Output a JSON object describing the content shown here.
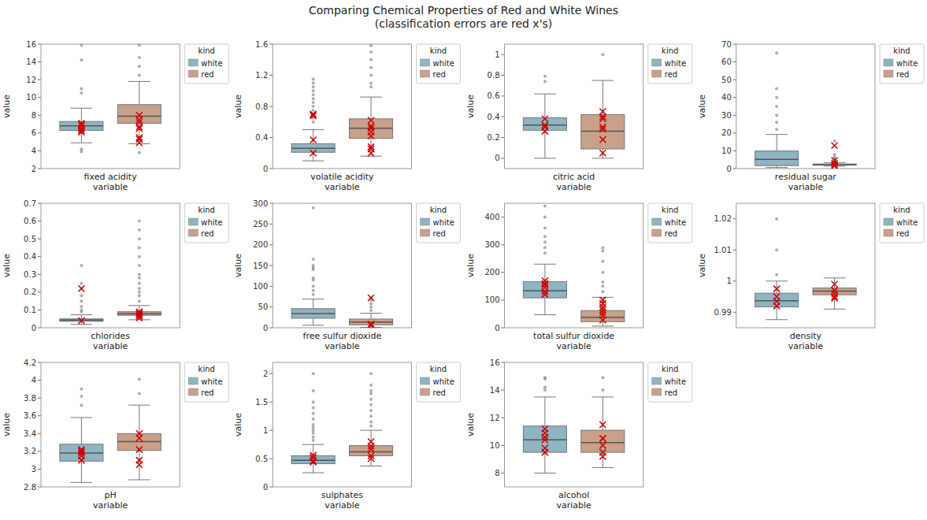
{
  "title": "Comparing Chemical Properties of Red and White Wines\n(classification errors are red x's)",
  "chart_data": [
    {
      "type": "box",
      "x_label": "fixed acidity\nvariable",
      "y_label": "value",
      "ylim": [
        2,
        16
      ],
      "yticks": [
        2,
        4,
        6,
        8,
        10,
        12,
        14,
        16
      ],
      "grid": false,
      "legend": "upper right",
      "legend_title": "kind",
      "error_color": "#CC0000",
      "series": [
        {
          "name": "white",
          "color": "#8FB4C2",
          "q1": 6.3,
          "med": 6.8,
          "q3": 7.3,
          "whislo": 4.9,
          "whishi": 8.8,
          "fliers": [
            3.9,
            4.2,
            10.5,
            11.0,
            14.2,
            15.9
          ],
          "errors": [
            6.1,
            6.5,
            7.0,
            7.1,
            6.8,
            6.3
          ]
        },
        {
          "name": "red",
          "color": "#C9A08A",
          "q1": 7.1,
          "med": 7.9,
          "q3": 9.2,
          "whislo": 4.8,
          "whishi": 11.8,
          "fliers": [
            3.8,
            12.5,
            13.5,
            14.5,
            15.9
          ],
          "errors": [
            8.0,
            7.5,
            7.2,
            6.5,
            6.7,
            5.3,
            5.5,
            4.9
          ]
        }
      ]
    },
    {
      "type": "box",
      "x_label": "volatile acidity\nvariable",
      "y_label": "value",
      "ylim": [
        0,
        1.6
      ],
      "yticks": [
        0,
        0.4,
        0.8,
        1.2,
        1.6
      ],
      "grid": false,
      "legend": "upper right",
      "legend_title": "kind",
      "error_color": "#CC0000",
      "series": [
        {
          "name": "white",
          "color": "#8FB4C2",
          "q1": 0.21,
          "med": 0.26,
          "q3": 0.32,
          "whislo": 0.1,
          "whishi": 0.5,
          "fliers": [
            0.6,
            0.65,
            0.7,
            0.75,
            0.8,
            0.85,
            0.9,
            0.95,
            1.0,
            1.05,
            1.1,
            1.15
          ],
          "errors": [
            0.2,
            0.37,
            0.7,
            0.68
          ]
        },
        {
          "name": "red",
          "color": "#C9A08A",
          "q1": 0.39,
          "med": 0.52,
          "q3": 0.64,
          "whislo": 0.16,
          "whishi": 0.92,
          "fliers": [
            1.05,
            1.1,
            1.2,
            1.3,
            1.4,
            1.5,
            1.58
          ],
          "errors": [
            0.55,
            0.62,
            0.42,
            0.52,
            0.47,
            0.28,
            0.2,
            0.25
          ]
        }
      ]
    },
    {
      "type": "box",
      "x_label": "citric acid\nvariable",
      "y_label": "value",
      "ylim": [
        -0.1,
        1.1
      ],
      "yticks": [
        0,
        0.2,
        0.4,
        0.6,
        0.8,
        1
      ],
      "grid": false,
      "legend": "upper right",
      "legend_title": "kind",
      "error_color": "#CC0000",
      "series": [
        {
          "name": "white",
          "color": "#8FB4C2",
          "q1": 0.27,
          "med": 0.32,
          "q3": 0.39,
          "whislo": 0.0,
          "whishi": 0.62,
          "fliers": [
            0.74,
            0.79
          ],
          "errors": [
            0.26,
            0.32,
            0.38,
            0.3
          ]
        },
        {
          "name": "red",
          "color": "#C9A08A",
          "q1": 0.09,
          "med": 0.26,
          "q3": 0.42,
          "whislo": 0.0,
          "whishi": 0.75,
          "fliers": [
            1.0
          ],
          "errors": [
            0.38,
            0.18,
            0.45,
            0.28,
            0.05,
            0.4,
            0.3
          ]
        }
      ]
    },
    {
      "type": "box",
      "x_label": "residual sugar\nvariable",
      "y_label": "value",
      "ylim": [
        0,
        70
      ],
      "yticks": [
        0,
        10,
        20,
        30,
        40,
        50,
        60,
        70
      ],
      "grid": false,
      "legend": "upper right",
      "legend_title": "kind",
      "error_color": "#CC0000",
      "series": [
        {
          "name": "white",
          "color": "#8FB4C2",
          "q1": 1.7,
          "med": 5.2,
          "q3": 9.9,
          "whislo": 0.6,
          "whishi": 19.2,
          "fliers": [
            22,
            26,
            30,
            35,
            40,
            45,
            65
          ],
          "errors": []
        },
        {
          "name": "red",
          "color": "#C9A08A",
          "q1": 1.9,
          "med": 2.2,
          "q3": 2.6,
          "whislo": 1.4,
          "whishi": 3.4,
          "fliers": [
            4.0,
            4.5,
            5.0,
            5.5,
            6.5,
            8.0,
            15.5
          ],
          "errors": [
            2.0,
            1.5,
            3.0,
            4.5,
            13.0
          ]
        }
      ]
    },
    {
      "type": "box",
      "x_label": "chlorides\nvariable",
      "y_label": "value",
      "ylim": [
        0,
        0.7
      ],
      "yticks": [
        0,
        0.1,
        0.2,
        0.3,
        0.4,
        0.5,
        0.6,
        0.7
      ],
      "grid": false,
      "legend": "upper right",
      "legend_title": "kind",
      "error_color": "#CC0000",
      "series": [
        {
          "name": "white",
          "color": "#8FB4C2",
          "q1": 0.036,
          "med": 0.043,
          "q3": 0.05,
          "whislo": 0.019,
          "whishi": 0.073,
          "fliers": [
            0.09,
            0.1,
            0.12,
            0.15,
            0.18,
            0.22,
            0.25,
            0.35
          ],
          "errors": [
            0.04,
            0.22
          ]
        },
        {
          "name": "red",
          "color": "#C9A08A",
          "q1": 0.07,
          "med": 0.079,
          "q3": 0.09,
          "whislo": 0.045,
          "whishi": 0.125,
          "fliers": [
            0.15,
            0.18,
            0.2,
            0.22,
            0.25,
            0.28,
            0.3,
            0.35,
            0.4,
            0.45,
            0.5,
            0.55,
            0.6
          ],
          "errors": [
            0.074,
            0.082,
            0.068,
            0.09,
            0.056
          ]
        }
      ]
    },
    {
      "type": "box",
      "x_label": "free sulfur dioxide\nvariable",
      "y_label": "value",
      "ylim": [
        0,
        300
      ],
      "yticks": [
        0,
        50,
        100,
        150,
        200,
        250,
        300
      ],
      "grid": false,
      "legend": "upper right",
      "legend_title": "kind",
      "error_color": "#CC0000",
      "series": [
        {
          "name": "white",
          "color": "#8FB4C2",
          "q1": 23,
          "med": 34,
          "q3": 46,
          "whislo": 6,
          "whishi": 69,
          "fliers": [
            80,
            90,
            100,
            115,
            120,
            140,
            145,
            150,
            165,
            289
          ],
          "errors": []
        },
        {
          "name": "red",
          "color": "#C9A08A",
          "q1": 7,
          "med": 14,
          "q3": 21,
          "whislo": 1,
          "whishi": 35,
          "fliers": [
            42,
            50,
            58,
            66,
            72
          ],
          "errors": [
            6.0,
            9.0,
            72.0
          ]
        }
      ]
    },
    {
      "type": "box",
      "x_label": "total sulfur dioxide\nvariable",
      "y_label": "value",
      "ylim": [
        0,
        450
      ],
      "yticks": [
        0,
        100,
        200,
        300,
        400
      ],
      "grid": false,
      "legend": "upper right",
      "legend_title": "kind",
      "error_color": "#CC0000",
      "series": [
        {
          "name": "white",
          "color": "#8FB4C2",
          "q1": 108,
          "med": 134,
          "q3": 167,
          "whislo": 47,
          "whishi": 230,
          "fliers": [
            270,
            290,
            310,
            330,
            360,
            400,
            440
          ],
          "errors": [
            120,
            145,
            160,
            170,
            155,
            130
          ]
        },
        {
          "name": "red",
          "color": "#C9A08A",
          "q1": 22,
          "med": 38,
          "q3": 62,
          "whislo": 6,
          "whishi": 110,
          "fliers": [
            130,
            150,
            165,
            200,
            240,
            278,
            289
          ],
          "errors": [
            28,
            45,
            55,
            65,
            75,
            88,
            100
          ]
        }
      ]
    },
    {
      "type": "box",
      "x_label": "density\nvariable",
      "y_label": "value",
      "ylim": [
        0.985,
        1.025
      ],
      "yticks": [
        0.99,
        1,
        1.01,
        1.02
      ],
      "grid": false,
      "legend": "upper right",
      "legend_title": "kind",
      "error_color": "#CC0000",
      "series": [
        {
          "name": "white",
          "color": "#8FB4C2",
          "q1": 0.9917,
          "med": 0.9937,
          "q3": 0.9961,
          "whislo": 0.9876,
          "whishi": 1.0,
          "fliers": [
            1.002,
            1.01,
            1.02
          ],
          "errors": [
            0.9935,
            0.992,
            0.995,
            0.9975
          ]
        },
        {
          "name": "red",
          "color": "#C9A08A",
          "q1": 0.9956,
          "med": 0.9968,
          "q3": 0.9978,
          "whislo": 0.991,
          "whishi": 1.001,
          "fliers": [],
          "errors": [
            0.997,
            0.999,
            0.995,
            0.9945,
            0.996
          ]
        }
      ]
    },
    {
      "type": "box",
      "x_label": "pH\nvariable",
      "y_label": "value",
      "ylim": [
        2.8,
        4.2
      ],
      "yticks": [
        2.8,
        3,
        3.2,
        3.4,
        3.6,
        3.8,
        4,
        4.2
      ],
      "grid": false,
      "legend": "upper right",
      "legend_title": "kind",
      "error_color": "#CC0000",
      "series": [
        {
          "name": "white",
          "color": "#8FB4C2",
          "q1": 3.09,
          "med": 3.18,
          "q3": 3.28,
          "whislo": 2.85,
          "whishi": 3.58,
          "fliers": [
            3.72,
            3.82,
            3.9
          ],
          "errors": [
            3.1,
            3.2,
            3.22,
            3.15,
            3.18
          ]
        },
        {
          "name": "red",
          "color": "#C9A08A",
          "q1": 3.21,
          "med": 3.31,
          "q3": 3.4,
          "whislo": 2.88,
          "whishi": 3.72,
          "fliers": [
            3.85,
            4.01
          ],
          "errors": [
            3.22,
            3.35,
            3.1,
            3.05,
            3.4
          ]
        }
      ]
    },
    {
      "type": "box",
      "x_label": "sulphates\nvariable",
      "y_label": "value",
      "ylim": [
        0,
        2.2
      ],
      "yticks": [
        0,
        0.5,
        1,
        1.5,
        2
      ],
      "grid": false,
      "legend": "upper right",
      "legend_title": "kind",
      "error_color": "#CC0000",
      "series": [
        {
          "name": "white",
          "color": "#8FB4C2",
          "q1": 0.41,
          "med": 0.47,
          "q3": 0.55,
          "whislo": 0.25,
          "whishi": 0.75,
          "fliers": [
            0.82,
            0.88,
            0.95,
            1.0,
            1.05,
            1.1,
            1.2,
            1.3,
            1.4,
            1.5,
            1.7,
            2.0
          ],
          "errors": [
            0.46,
            0.52,
            0.56,
            0.44
          ]
        },
        {
          "name": "red",
          "color": "#C9A08A",
          "q1": 0.55,
          "med": 0.62,
          "q3": 0.73,
          "whislo": 0.37,
          "whishi": 1.0,
          "fliers": [
            1.08,
            1.15,
            1.25,
            1.35,
            1.45,
            1.55,
            1.65,
            1.7,
            1.8,
            2.0
          ],
          "errors": [
            0.55,
            0.67,
            0.72,
            0.5,
            0.8
          ]
        }
      ]
    },
    {
      "type": "box",
      "x_label": "alcohol\nvariable",
      "y_label": "value",
      "ylim": [
        7,
        16
      ],
      "yticks": [
        8,
        10,
        12,
        14,
        16
      ],
      "grid": false,
      "legend": "upper right",
      "legend_title": "kind",
      "error_color": "#CC0000",
      "series": [
        {
          "name": "white",
          "color": "#8FB4C2",
          "q1": 9.5,
          "med": 10.4,
          "q3": 11.4,
          "whislo": 8.0,
          "whishi": 13.5,
          "fliers": [
            14.0,
            14.2,
            14.8,
            14.9
          ],
          "errors": [
            10.4,
            10.6,
            9.5,
            9.8,
            10.9,
            11.2
          ]
        },
        {
          "name": "red",
          "color": "#C9A08A",
          "q1": 9.5,
          "med": 10.2,
          "q3": 11.1,
          "whislo": 8.4,
          "whishi": 13.5,
          "fliers": [
            14.0,
            14.9
          ],
          "errors": [
            10.0,
            9.5,
            11.5,
            10.5,
            9.2,
            10.5
          ]
        }
      ]
    }
  ]
}
